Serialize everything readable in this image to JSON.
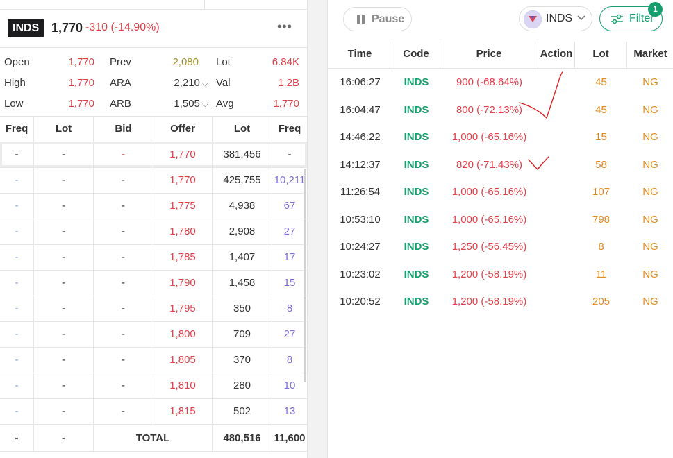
{
  "header": {
    "symbol": "INDS",
    "price": "1,770",
    "change": "-310 (-14.90%)",
    "more": "•••"
  },
  "stats": [
    {
      "l1": "Open",
      "v1": "1,770",
      "l2": "Prev",
      "v2": "2,080",
      "l3": "Lot",
      "v3": "6.84K"
    },
    {
      "l1": "High",
      "v1": "1,770",
      "l2": "ARA",
      "v2": "2,210",
      "l3": "Val",
      "v3": "1.2B"
    },
    {
      "l1": "Low",
      "v1": "1,770",
      "l2": "ARB",
      "v2": "1,505",
      "l3": "Avg",
      "v3": "1,770"
    }
  ],
  "orderbook": {
    "headers": [
      "Freq",
      "Lot",
      "Bid",
      "Offer",
      "Lot",
      "Freq"
    ],
    "first": {
      "freq": "-",
      "lot": "-",
      "bid": "-",
      "offer": "1,770",
      "offer_lot": "381,456",
      "offer_freq": "-"
    },
    "rows": [
      {
        "freq": "-",
        "lot": "-",
        "bid": "-",
        "offer": "1,770",
        "offer_lot": "425,755",
        "offer_freq": "10,211"
      },
      {
        "freq": "-",
        "lot": "-",
        "bid": "-",
        "offer": "1,775",
        "offer_lot": "4,938",
        "offer_freq": "67"
      },
      {
        "freq": "-",
        "lot": "-",
        "bid": "-",
        "offer": "1,780",
        "offer_lot": "2,908",
        "offer_freq": "27"
      },
      {
        "freq": "-",
        "lot": "-",
        "bid": "-",
        "offer": "1,785",
        "offer_lot": "1,407",
        "offer_freq": "17"
      },
      {
        "freq": "-",
        "lot": "-",
        "bid": "-",
        "offer": "1,790",
        "offer_lot": "1,458",
        "offer_freq": "15"
      },
      {
        "freq": "-",
        "lot": "-",
        "bid": "-",
        "offer": "1,795",
        "offer_lot": "350",
        "offer_freq": "8"
      },
      {
        "freq": "-",
        "lot": "-",
        "bid": "-",
        "offer": "1,800",
        "offer_lot": "709",
        "offer_freq": "27"
      },
      {
        "freq": "-",
        "lot": "-",
        "bid": "-",
        "offer": "1,805",
        "offer_lot": "370",
        "offer_freq": "8"
      },
      {
        "freq": "-",
        "lot": "-",
        "bid": "-",
        "offer": "1,810",
        "offer_lot": "280",
        "offer_freq": "10"
      },
      {
        "freq": "-",
        "lot": "-",
        "bid": "-",
        "offer": "1,815",
        "offer_lot": "502",
        "offer_freq": "13"
      }
    ],
    "total": {
      "freq": "-",
      "lot": "-",
      "label": "TOTAL",
      "offer_lot": "480,516",
      "offer_freq": "11,600"
    }
  },
  "running_trade": {
    "pause_label": "Pause",
    "stock_label": "INDS",
    "filter_label": "Filter",
    "filter_badge": "1",
    "headers": [
      "Time",
      "Code",
      "Price",
      "Action",
      "Lot",
      "Market"
    ],
    "rows": [
      {
        "time": "16:06:27",
        "code": "INDS",
        "price": "900 (-68.64%)",
        "lot": "45",
        "market": "NG"
      },
      {
        "time": "16:04:47",
        "code": "INDS",
        "price": "800 (-72.13%)",
        "lot": "45",
        "market": "NG"
      },
      {
        "time": "14:46:22",
        "code": "INDS",
        "price": "1,000 (-65.16%)",
        "lot": "15",
        "market": "NG"
      },
      {
        "time": "14:12:37",
        "code": "INDS",
        "price": "820 (-71.43%)",
        "lot": "58",
        "market": "NG"
      },
      {
        "time": "11:26:54",
        "code": "INDS",
        "price": "1,000 (-65.16%)",
        "lot": "107",
        "market": "NG"
      },
      {
        "time": "10:53:10",
        "code": "INDS",
        "price": "1,000 (-65.16%)",
        "lot": "798",
        "market": "NG"
      },
      {
        "time": "10:24:27",
        "code": "INDS",
        "price": "1,250 (-56.45%)",
        "lot": "8",
        "market": "NG"
      },
      {
        "time": "10:23:02",
        "code": "INDS",
        "price": "1,200 (-58.19%)",
        "lot": "11",
        "market": "NG"
      },
      {
        "time": "10:20:52",
        "code": "INDS",
        "price": "1,200 (-58.19%)",
        "lot": "205",
        "market": "NG"
      }
    ]
  },
  "colors": {
    "loss": "#e0424a",
    "gain_code": "#169f6d",
    "lot": "#e08a1e",
    "freq": "#7b6fd8",
    "prev": "#a49232",
    "accent": "#169f6d"
  },
  "icons": [
    "pause-icon",
    "stock-logo-icon",
    "chevron-down-icon",
    "filter-sliders-icon",
    "more-dots-icon",
    "hand-drawn-check-mark"
  ]
}
